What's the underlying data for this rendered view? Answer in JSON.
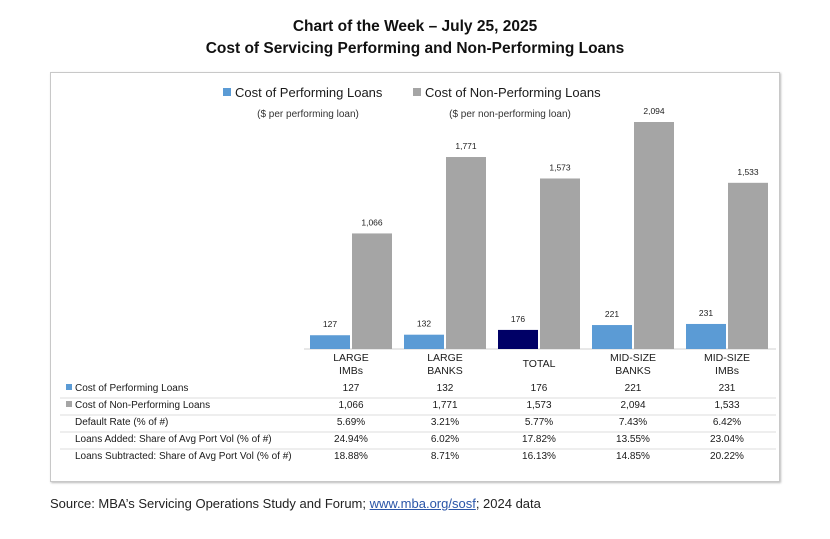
{
  "header": {
    "line1": "Chart of the Week – July 25, 2025",
    "line2": "Cost of Servicing Performing and Non-Performing Loans"
  },
  "colors": {
    "performing": "#5b9bd5",
    "performing_total": "#000066",
    "nonperforming": "#a5a5a5"
  },
  "chart_data": {
    "type": "bar",
    "title": "Cost of Servicing Performing and Non-Performing Loans",
    "categories": [
      [
        "LARGE",
        "IMBs"
      ],
      [
        "LARGE",
        "BANKS"
      ],
      [
        "TOTAL"
      ],
      [
        "MID-SIZE",
        "BANKS"
      ],
      [
        "MID-SIZE",
        "IMBs"
      ]
    ],
    "series": [
      {
        "name": "Cost of Performing Loans",
        "sublabel": "($ per performing loan)",
        "values": [
          127,
          132,
          176,
          221,
          231
        ],
        "labels": [
          "127",
          "132",
          "176",
          "221",
          "231"
        ]
      },
      {
        "name": "Cost of Non-Performing Loans",
        "sublabel": "($ per non-performing loan)",
        "values": [
          1066,
          1771,
          1573,
          2094,
          1533
        ],
        "labels": [
          "1,066",
          "1,771",
          "1,573",
          "2,094",
          "1,533"
        ]
      }
    ],
    "legend": "top",
    "grid": false,
    "ylim": [
      0,
      2100
    ],
    "highlight_category": 2
  },
  "table": {
    "rows": [
      {
        "label": "Cost of Performing Loans",
        "marker": "performing",
        "values": [
          "127",
          "132",
          "176",
          "221",
          "231"
        ]
      },
      {
        "label": "Cost of Non-Performing Loans",
        "marker": "nonperforming",
        "values": [
          "1,066",
          "1,771",
          "1,573",
          "2,094",
          "1,533"
        ]
      },
      {
        "label": "Default Rate (% of #)",
        "marker": null,
        "values": [
          "5.69%",
          "3.21%",
          "5.77%",
          "7.43%",
          "6.42%"
        ]
      },
      {
        "label": "Loans Added:  Share of Avg Port Vol (% of #)",
        "marker": null,
        "values": [
          "24.94%",
          "6.02%",
          "17.82%",
          "13.55%",
          "23.04%"
        ]
      },
      {
        "label": "Loans Subtracted:  Share of Avg Port Vol (% of #)",
        "marker": null,
        "values": [
          "18.88%",
          "8.71%",
          "16.13%",
          "14.85%",
          "20.22%"
        ]
      }
    ]
  },
  "source": {
    "prefix": "Source: MBA’s Servicing Operations Study and Forum; ",
    "link": "www.mba.org/sosf",
    "suffix": "; 2024 data"
  }
}
